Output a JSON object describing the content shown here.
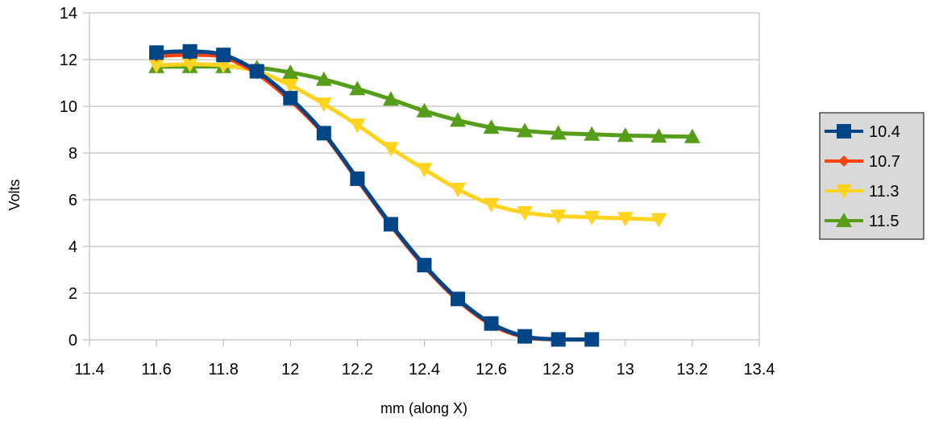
{
  "chart_data": {
    "type": "line",
    "title": "",
    "xlabel": "mm (along X)",
    "ylabel": "Volts",
    "xlim": [
      11.4,
      13.4
    ],
    "ylim": [
      0,
      14
    ],
    "xticks": [
      "11.4",
      "11.6",
      "11.8",
      "12",
      "12.2",
      "12.4",
      "12.6",
      "12.8",
      "13",
      "13.2",
      "13.4"
    ],
    "yticks": [
      "0",
      "2",
      "4",
      "6",
      "8",
      "10",
      "12",
      "14"
    ],
    "grid": "horizontal",
    "legend_position": "right",
    "series": [
      {
        "name": "10.4",
        "color": "#004586",
        "marker": "square",
        "x": [
          11.6,
          11.7,
          11.8,
          11.9,
          12.0,
          12.1,
          12.2,
          12.3,
          12.4,
          12.5,
          12.6,
          12.7,
          12.8,
          12.9
        ],
        "y": [
          12.3,
          12.35,
          12.2,
          11.5,
          10.35,
          8.85,
          6.9,
          4.95,
          3.2,
          1.75,
          0.7,
          0.15,
          0.02,
          0.02
        ]
      },
      {
        "name": "10.7",
        "color": "#ff420e",
        "marker": "diamond",
        "x": [
          11.6,
          11.7,
          11.8,
          11.9,
          12.0,
          12.1,
          12.2,
          12.3,
          12.4,
          12.5,
          12.6,
          12.7,
          12.8,
          12.9
        ],
        "y": [
          12.15,
          12.2,
          12.1,
          11.4,
          10.25,
          8.8,
          6.85,
          4.9,
          3.15,
          1.7,
          0.65,
          0.12,
          0.02,
          0.02
        ]
      },
      {
        "name": "11.3",
        "color": "#ffd320",
        "marker": "triangle-down",
        "x": [
          11.6,
          11.7,
          11.8,
          11.9,
          12.0,
          12.1,
          12.2,
          12.3,
          12.4,
          12.5,
          12.6,
          12.7,
          12.8,
          12.9,
          13.0,
          13.1
        ],
        "y": [
          11.75,
          11.8,
          11.75,
          11.5,
          10.9,
          10.1,
          9.2,
          8.2,
          7.3,
          6.45,
          5.8,
          5.45,
          5.3,
          5.25,
          5.2,
          5.15
        ]
      },
      {
        "name": "11.5",
        "color": "#579d1c",
        "marker": "triangle-up",
        "x": [
          11.6,
          11.7,
          11.8,
          11.9,
          12.0,
          12.1,
          12.2,
          12.3,
          12.4,
          12.5,
          12.6,
          12.7,
          12.8,
          12.9,
          13.0,
          13.1,
          13.2
        ],
        "y": [
          11.7,
          11.7,
          11.7,
          11.65,
          11.45,
          11.15,
          10.75,
          10.3,
          9.8,
          9.4,
          9.1,
          8.95,
          8.85,
          8.8,
          8.75,
          8.72,
          8.7
        ]
      }
    ]
  }
}
